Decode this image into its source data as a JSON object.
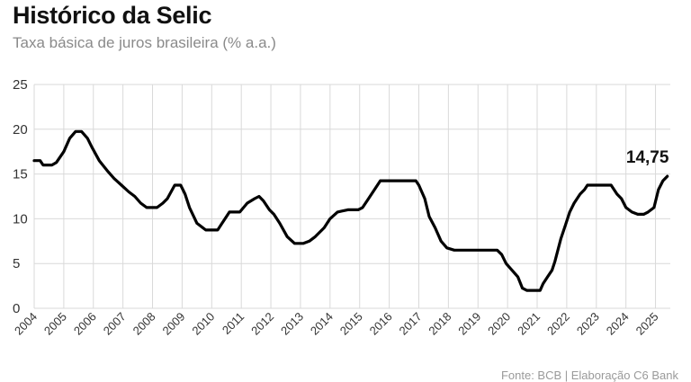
{
  "header": {
    "title": "Histórico da Selic",
    "subtitle": "Taxa básica de juros brasileira (% a.a.)"
  },
  "footer": {
    "source": "Fonte: BCB | Elaboração C6 Bank"
  },
  "colors": {
    "line": "#000000",
    "grid": "#d9d9d9",
    "text": "#111111",
    "muted": "#8a8a8a"
  },
  "chart_data": {
    "type": "line",
    "title": "Histórico da Selic",
    "subtitle": "Taxa básica de juros brasileira (% a.a.)",
    "xlabel": "",
    "ylabel": "",
    "xlim": [
      2004.0,
      2025.5
    ],
    "ylim": [
      0,
      25
    ],
    "y_ticks": [
      0,
      5,
      10,
      15,
      20,
      25
    ],
    "x_ticks": [
      "2004",
      "2005",
      "2006",
      "2007",
      "2008",
      "2009",
      "2010",
      "2011",
      "2012",
      "2013",
      "2014",
      "2015",
      "2016",
      "2017",
      "2018",
      "2019",
      "2020",
      "2021",
      "2022",
      "2023",
      "2024",
      "2025"
    ],
    "grid": true,
    "annotation": {
      "text": "14,75",
      "x": 2025.3,
      "y": 14.75
    },
    "series": [
      {
        "x": [
          2004.0,
          2004.2,
          2004.3,
          2004.6,
          2004.75,
          2005.0,
          2005.2,
          2005.4,
          2005.6,
          2005.8,
          2005.95,
          2006.2,
          2006.5,
          2006.7,
          2006.95,
          2007.2,
          2007.4,
          2007.6,
          2007.8,
          2008.0,
          2008.15,
          2008.35,
          2008.5,
          2008.75,
          2008.95,
          2009.1,
          2009.25,
          2009.5,
          2009.8,
          2010.2,
          2010.35,
          2010.6,
          2010.95,
          2011.2,
          2011.45,
          2011.6,
          2011.75,
          2011.95,
          2012.1,
          2012.3,
          2012.55,
          2012.8,
          2013.1,
          2013.3,
          2013.5,
          2013.8,
          2014.0,
          2014.25,
          2014.6,
          2014.95,
          2015.1,
          2015.3,
          2015.5,
          2015.7,
          2016.9,
          2017.0,
          2017.2,
          2017.35,
          2017.55,
          2017.75,
          2017.95,
          2018.2,
          2019.65,
          2019.8,
          2019.95,
          2020.15,
          2020.35,
          2020.5,
          2020.65,
          2021.1,
          2021.2,
          2021.35,
          2021.5,
          2021.6,
          2021.8,
          2021.95,
          2022.1,
          2022.25,
          2022.45,
          2022.6,
          2022.7,
          2023.5,
          2023.7,
          2023.85,
          2024.0,
          2024.2,
          2024.4,
          2024.6,
          2024.75,
          2024.95,
          2025.1,
          2025.25,
          2025.4
        ],
        "y": [
          16.5,
          16.5,
          16.0,
          16.0,
          16.3,
          17.5,
          19.0,
          19.75,
          19.75,
          19.0,
          18.0,
          16.5,
          15.25,
          14.5,
          13.75,
          13.0,
          12.5,
          11.75,
          11.25,
          11.25,
          11.25,
          11.75,
          12.25,
          13.75,
          13.75,
          12.75,
          11.25,
          9.5,
          8.75,
          8.75,
          9.5,
          10.75,
          10.75,
          11.75,
          12.25,
          12.5,
          12.0,
          11.0,
          10.5,
          9.5,
          8.0,
          7.25,
          7.25,
          7.5,
          8.0,
          9.0,
          10.0,
          10.75,
          11.0,
          11.0,
          11.25,
          12.25,
          13.25,
          14.25,
          14.25,
          13.75,
          12.25,
          10.25,
          9.0,
          7.5,
          6.75,
          6.5,
          6.5,
          6.0,
          5.0,
          4.25,
          3.5,
          2.25,
          2.0,
          2.0,
          2.75,
          3.5,
          4.25,
          5.25,
          7.75,
          9.25,
          10.75,
          11.75,
          12.75,
          13.25,
          13.75,
          13.75,
          12.75,
          12.25,
          11.25,
          10.75,
          10.5,
          10.5,
          10.75,
          11.25,
          13.25,
          14.25,
          14.75
        ]
      }
    ]
  }
}
